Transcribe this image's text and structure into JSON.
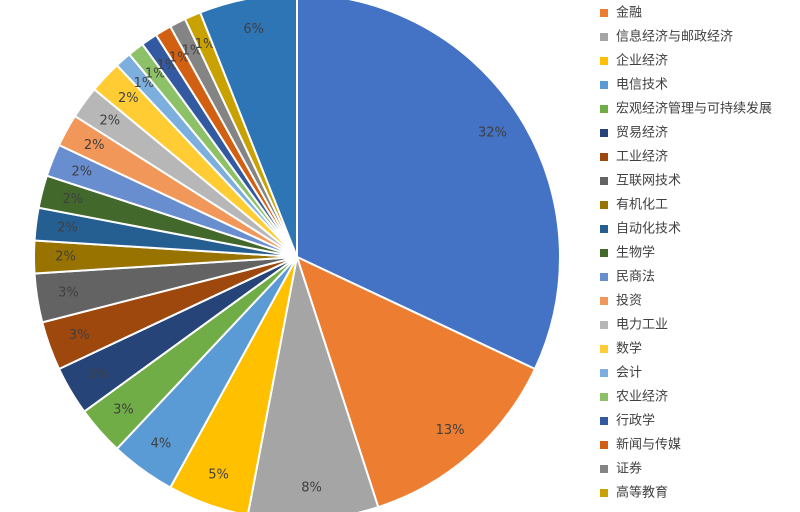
{
  "chart_data": {
    "type": "pie",
    "categories": [
      null,
      "金融",
      "信息经济与邮政经济",
      "企业经济",
      "电信技术",
      "宏观经济管理与可持续发展",
      "贸易经济",
      "工业经济",
      "互联网技术",
      "有机化工",
      "自动化技术",
      "生物学",
      "民商法",
      "投资",
      "电力工业",
      "数学",
      "会计",
      "农业经济",
      "行政学",
      "新闻与传媒",
      "证券",
      "高等教育",
      null
    ],
    "values": [
      32,
      13,
      8,
      5,
      4,
      3,
      3,
      3,
      3,
      2,
      2,
      2,
      2,
      2,
      2,
      2,
      1,
      1,
      1,
      1,
      1,
      1,
      6
    ],
    "value_labels": [
      "32%",
      "13%",
      "8%",
      "5%",
      "4%",
      "3%",
      "3%",
      "3%",
      "3%",
      "2%",
      "2%",
      "2%",
      "2%",
      "2%",
      "2%",
      "2%",
      "1%",
      "1%",
      "1%",
      "1%",
      "1%",
      "1%",
      "6%"
    ],
    "colors": [
      "#4472c4",
      "#ed7d31",
      "#a5a5a5",
      "#ffc000",
      "#5b9bd5",
      "#70ad47",
      "#264478",
      "#9e480e",
      "#636363",
      "#997300",
      "#255e91",
      "#43682b",
      "#698ed0",
      "#f1975a",
      "#b7b7b7",
      "#ffcd33",
      "#7cafdd",
      "#8cc168",
      "#335aa1",
      "#d26012",
      "#848484",
      "#c9a100",
      "#2e75b6"
    ],
    "legend": "right"
  }
}
